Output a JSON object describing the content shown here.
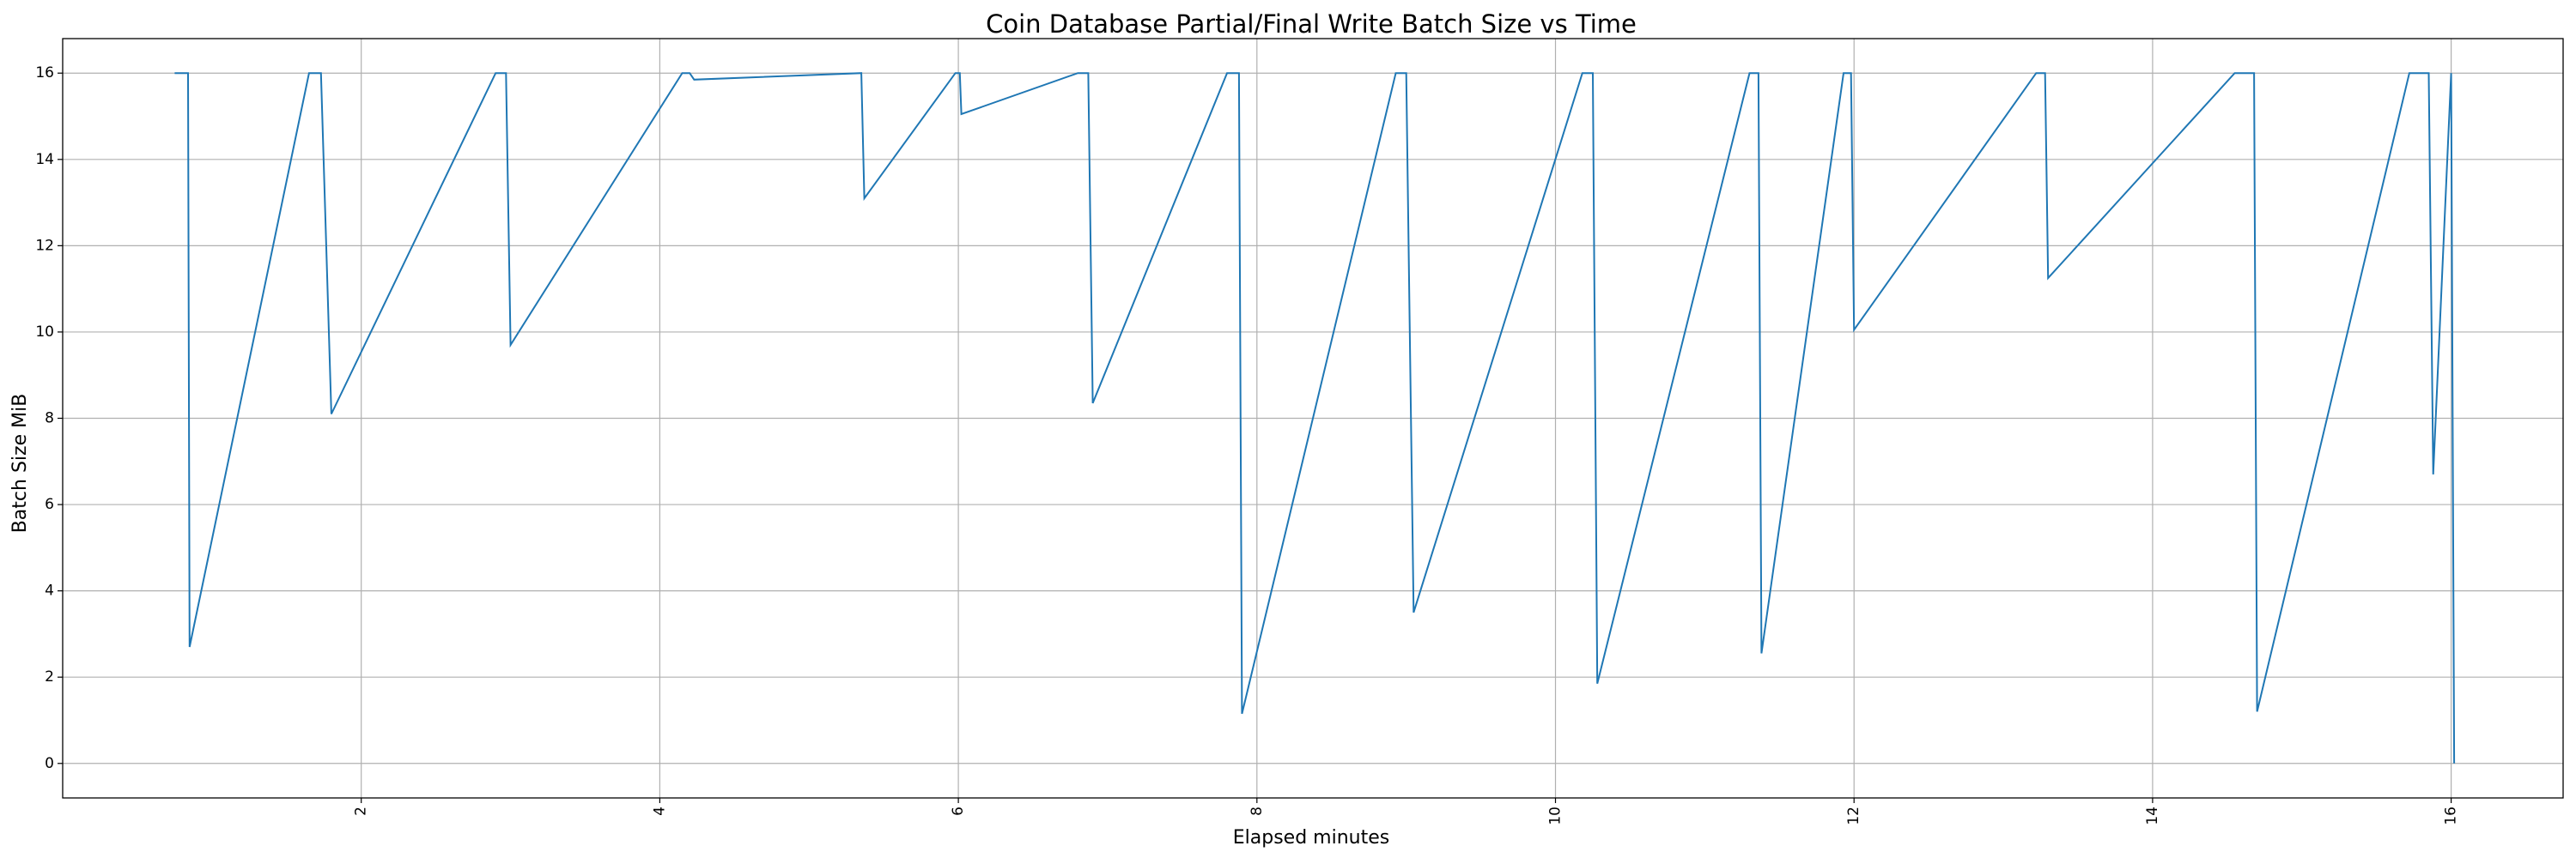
{
  "chart_data": {
    "type": "line",
    "title": "Coin Database Partial/Final Write Batch Size vs Time",
    "xlabel": "Elapsed minutes",
    "ylabel": "Batch Size MiB",
    "xlim": [
      0.0,
      16.75
    ],
    "ylim": [
      -0.8,
      16.8
    ],
    "xticks": [
      2,
      4,
      6,
      8,
      10,
      12,
      14,
      16
    ],
    "yticks": [
      0,
      2,
      4,
      6,
      8,
      10,
      12,
      14,
      16
    ],
    "x_tick_rotation": 90,
    "grid": true,
    "colors": {
      "line": "#1f77b4",
      "grid": "#b0b0b0",
      "axes": "#000000"
    },
    "series": [
      {
        "x": [
          0.75,
          0.84,
          0.85,
          1.65,
          1.73,
          1.8,
          2.9,
          2.97,
          3.0,
          4.15,
          4.2,
          4.23,
          5.35,
          5.37,
          5.98,
          6.01,
          6.02,
          6.8,
          6.87,
          6.9,
          7.8,
          7.88,
          7.9,
          8.93,
          9.0,
          9.05,
          10.18,
          10.25,
          10.28,
          11.3,
          11.36,
          11.38,
          11.93,
          11.98,
          12.0,
          13.22,
          13.28,
          13.3,
          14.55,
          14.68,
          14.7,
          15.72,
          15.85,
          15.88,
          16.0,
          16.02
        ],
        "y": [
          16.0,
          16.0,
          2.7,
          16.0,
          16.0,
          8.1,
          16.0,
          16.0,
          9.7,
          16.0,
          16.0,
          15.85,
          16.0,
          13.1,
          16.0,
          16.0,
          15.05,
          16.0,
          16.0,
          8.35,
          16.0,
          16.0,
          1.15,
          16.0,
          16.0,
          3.5,
          16.0,
          16.0,
          1.85,
          16.0,
          16.0,
          2.55,
          16.0,
          16.0,
          10.05,
          16.0,
          16.0,
          11.25,
          16.0,
          16.0,
          1.2,
          16.0,
          16.0,
          6.7,
          16.0,
          0.0
        ]
      }
    ]
  }
}
